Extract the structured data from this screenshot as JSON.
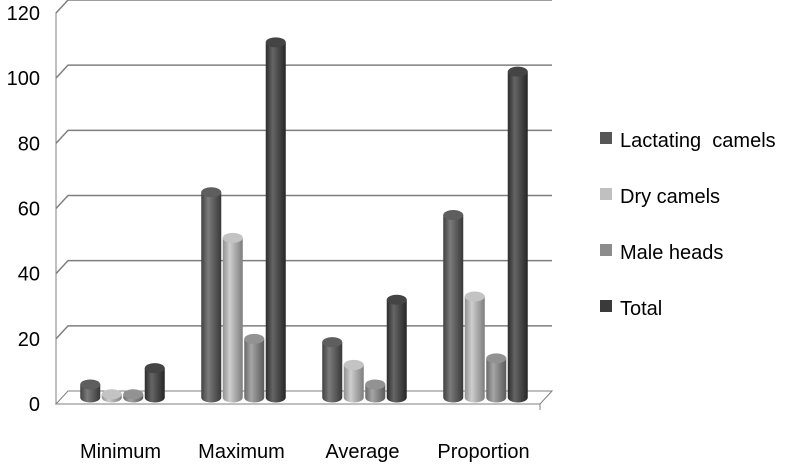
{
  "chart_data": {
    "type": "bar",
    "categories": [
      "Minimum",
      "Maximum",
      "Average",
      "Proportion"
    ],
    "series": [
      {
        "name": "Lactating  camels",
        "values": [
          4,
          63,
          17,
          56
        ]
      },
      {
        "name": "Dry camels",
        "values": [
          1,
          49,
          10,
          31
        ]
      },
      {
        "name": "Male heads",
        "values": [
          1,
          18,
          4,
          12
        ]
      },
      {
        "name": "Total",
        "values": [
          9,
          109,
          30,
          100
        ]
      }
    ],
    "y_ticks": [
      "0",
      "20",
      "40",
      "60",
      "80",
      "100",
      "120"
    ],
    "ylim": [
      0,
      120
    ],
    "grid": true,
    "legend_position": "right",
    "style": "3d-cylinder",
    "colors": [
      "#565656",
      "#c0c0c0",
      "#8c8c8c",
      "#3a3a3a"
    ]
  }
}
